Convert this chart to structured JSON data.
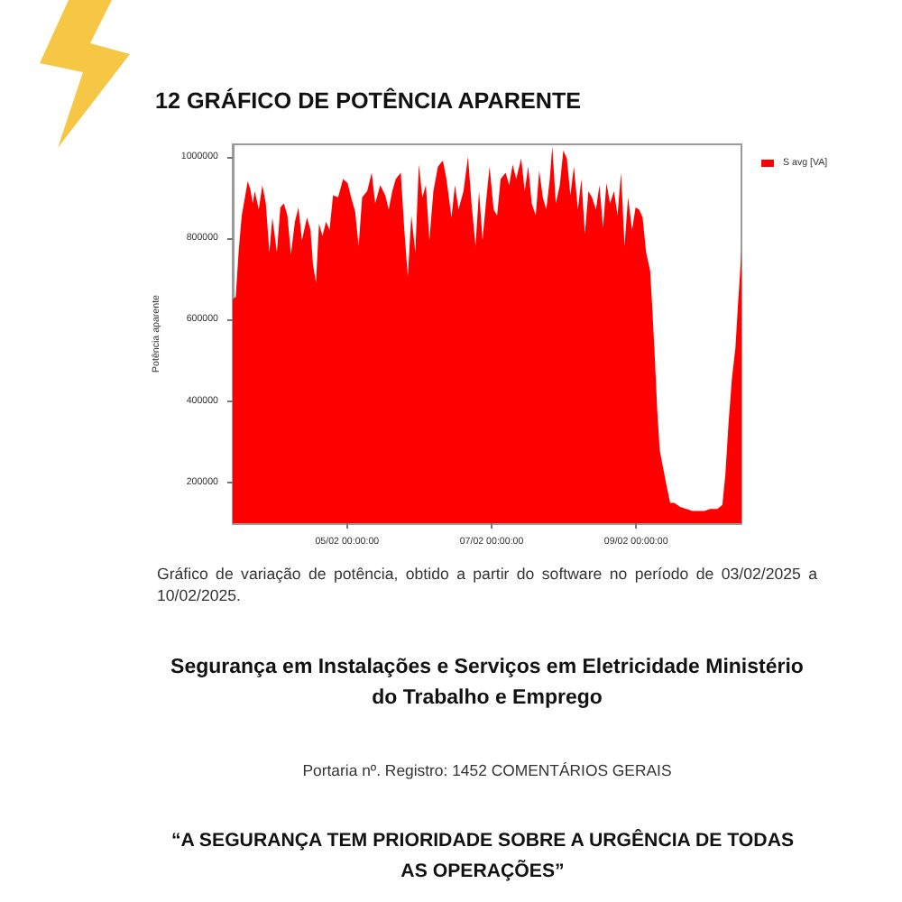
{
  "chart_data": {
    "type": "area",
    "title": "12 GRÁFICO DE POTÊNCIA APARENTE",
    "ylabel": "Potência aparente",
    "x": [
      "2025-02-03T10:00",
      "2025-02-03T11:00",
      "2025-02-03T12:00",
      "2025-02-03T13:00",
      "2025-02-03T13:50",
      "2025-02-03T15:00",
      "2025-02-03T15:50",
      "2025-02-03T16:40",
      "2025-02-03T17:20",
      "2025-02-03T18:40",
      "2025-02-03T19:50",
      "2025-02-03T21:00",
      "2025-02-03T22:10",
      "2025-02-03T23:10",
      "2025-02-04T00:40",
      "2025-02-04T01:50",
      "2025-02-04T03:00",
      "2025-02-04T04:10",
      "2025-02-04T05:20",
      "2025-02-04T06:40",
      "2025-02-04T07:50",
      "2025-02-04T09:00",
      "2025-02-04T10:40",
      "2025-02-04T11:50",
      "2025-02-04T12:40",
      "2025-02-04T13:40",
      "2025-02-04T14:40",
      "2025-02-04T15:50",
      "2025-02-04T17:00",
      "2025-02-04T18:10",
      "2025-02-04T19:20",
      "2025-02-04T21:00",
      "2025-02-04T22:40",
      "2025-02-05T00:10",
      "2025-02-05T01:20",
      "2025-02-05T02:40",
      "2025-02-05T03:50",
      "2025-02-05T05:00",
      "2025-02-05T06:40",
      "2025-02-05T08:10",
      "2025-02-05T09:20",
      "2025-02-05T11:00",
      "2025-02-05T12:40",
      "2025-02-05T13:50",
      "2025-02-05T15:00",
      "2025-02-05T16:10",
      "2025-02-05T17:50",
      "2025-02-05T19:00",
      "2025-02-05T20:10",
      "2025-02-05T21:20",
      "2025-02-05T22:40",
      "2025-02-05T23:50",
      "2025-02-06T01:00",
      "2025-02-06T02:10",
      "2025-02-06T03:20",
      "2025-02-06T04:40",
      "2025-02-06T06:10",
      "2025-02-06T07:50",
      "2025-02-06T09:00",
      "2025-02-06T10:40",
      "2025-02-06T11:50",
      "2025-02-06T13:00",
      "2025-02-06T14:40",
      "2025-02-06T16:10",
      "2025-02-06T17:20",
      "2025-02-06T18:40",
      "2025-02-06T19:50",
      "2025-02-06T21:00",
      "2025-02-06T22:10",
      "2025-02-06T23:20",
      "2025-02-07T00:40",
      "2025-02-07T01:50",
      "2025-02-07T03:00",
      "2025-02-07T04:40",
      "2025-02-07T05:50",
      "2025-02-07T07:00",
      "2025-02-07T08:10",
      "2025-02-07T09:50",
      "2025-02-07T11:00",
      "2025-02-07T12:10",
      "2025-02-07T13:20",
      "2025-02-07T14:40",
      "2025-02-07T15:50",
      "2025-02-07T17:00",
      "2025-02-07T18:10",
      "2025-02-07T19:20",
      "2025-02-07T20:10",
      "2025-02-07T21:20",
      "2025-02-07T22:40",
      "2025-02-07T23:50",
      "2025-02-08T01:00",
      "2025-02-08T02:10",
      "2025-02-08T03:20",
      "2025-02-08T04:40",
      "2025-02-08T05:50",
      "2025-02-08T07:00",
      "2025-02-08T08:10",
      "2025-02-08T09:20",
      "2025-02-08T10:40",
      "2025-02-08T11:50",
      "2025-02-08T13:00",
      "2025-02-08T14:10",
      "2025-02-08T15:20",
      "2025-02-08T16:40",
      "2025-02-08T17:50",
      "2025-02-08T19:00",
      "2025-02-08T20:10",
      "2025-02-08T21:20",
      "2025-02-08T22:40",
      "2025-02-08T23:50",
      "2025-02-09T01:00",
      "2025-02-09T02:10",
      "2025-02-09T03:20",
      "2025-02-09T04:40",
      "2025-02-09T05:20",
      "2025-02-09T06:10",
      "2025-02-09T07:00",
      "2025-02-09T07:50",
      "2025-02-09T09:00",
      "2025-02-09T10:10",
      "2025-02-09T11:20",
      "2025-02-09T12:40",
      "2025-02-09T14:40",
      "2025-02-09T16:40",
      "2025-02-09T18:40",
      "2025-02-09T20:40",
      "2025-02-09T22:40",
      "2025-02-10T00:40",
      "2025-02-10T03:00",
      "2025-02-10T04:40",
      "2025-02-10T05:40",
      "2025-02-10T06:40",
      "2025-02-10T07:50",
      "2025-02-10T09:00",
      "2025-02-10T09:50",
      "2025-02-10T11:00"
    ],
    "series": [
      {
        "name": "S avg [VA]",
        "color": "#ff0000",
        "values": [
          650000,
          655000,
          770000,
          855000,
          890000,
          940000,
          920000,
          885000,
          915000,
          870000,
          930000,
          885000,
          765000,
          850000,
          765000,
          875000,
          885000,
          855000,
          760000,
          840000,
          875000,
          795000,
          850000,
          820000,
          735000,
          690000,
          835000,
          805000,
          840000,
          820000,
          905000,
          900000,
          945000,
          935000,
          900000,
          865000,
          780000,
          900000,
          915000,
          960000,
          885000,
          930000,
          905000,
          870000,
          915000,
          945000,
          960000,
          820000,
          705000,
          855000,
          765000,
          980000,
          900000,
          930000,
          795000,
          915000,
          975000,
          990000,
          945000,
          850000,
          930000,
          870000,
          915000,
          1000000,
          885000,
          780000,
          915000,
          795000,
          890000,
          975000,
          870000,
          855000,
          945000,
          960000,
          930000,
          980000,
          945000,
          995000,
          915000,
          975000,
          885000,
          855000,
          965000,
          900000,
          870000,
          945000,
          1025000,
          885000,
          930000,
          1015000,
          995000,
          905000,
          975000,
          870000,
          945000,
          810000,
          915000,
          900000,
          870000,
          930000,
          825000,
          935000,
          885000,
          915000,
          855000,
          960000,
          780000,
          900000,
          820000,
          875000,
          870000,
          850000,
          765000,
          720000,
          635000,
          515000,
          380000,
          280000,
          235000,
          190000,
          150000,
          150000,
          140000,
          135000,
          130000,
          130000,
          130000,
          135000,
          135000,
          145000,
          220000,
          340000,
          455000,
          530000,
          635000,
          765000
        ]
      }
    ],
    "xlim": [
      "2025-02-03T10:00",
      "2025-02-10T11:00"
    ],
    "xticks": [
      {
        "value": "2025-02-05T00:00",
        "label": "05/02 00:00:00"
      },
      {
        "value": "2025-02-07T00:00",
        "label": "07/02 00:00:00"
      },
      {
        "value": "2025-02-09T00:00",
        "label": "09/02 00:00:00"
      }
    ],
    "ylim": [
      100000,
      1030000
    ],
    "yticks": [
      200000,
      400000,
      600000,
      800000,
      1000000
    ],
    "legend": "top right",
    "marker": "none",
    "annotations": [
      "Gráfico de variação de potência, obtido a partir do software no período de 03/02/2025 a 10/02/2025.",
      "Segurança em Instalações e Serviços em Eletricidade Ministério do Trabalho e Emprego",
      "Portaria nº. Registro: 1452 COMENTÁRIOS GERAIS",
      "“A SEGURANÇA TEM PRIORIDADE SOBRE A URGÊNCIA DE TODAS AS OPERAÇÕES”"
    ]
  }
}
